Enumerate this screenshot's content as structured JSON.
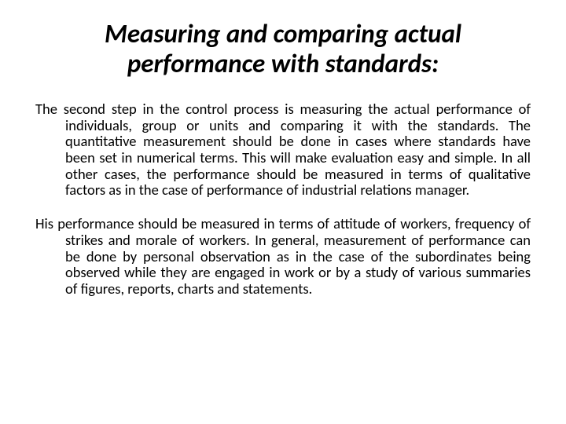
{
  "title": "Measuring and comparing actual performance with standards:",
  "paragraph1": "The second step in the control process is measuring the actual performance of individuals, group or units and comparing it with the standards. The quantitative measurement should be done in cases where standards have been set in numerical terms. This will make evaluation easy and simple. In all other cases, the performance should be measured in terms of qualitative factors as in the case of performance of industrial relations manager.",
  "paragraph2": "His performance should be measured in terms of attitude of workers, frequency of strikes and morale of workers. In general, measurement of performance can be done by personal observation as in the case of the subordinates being observed while they are engaged in work or by a study of various summaries of figures, reports, charts and statements.",
  "colors": {
    "background": "#ffffff",
    "text": "#000000"
  },
  "typography": {
    "title_fontsize": 33,
    "title_weight": "bold",
    "title_style": "italic",
    "body_fontsize": 18.5,
    "font_family": "Calibri"
  }
}
